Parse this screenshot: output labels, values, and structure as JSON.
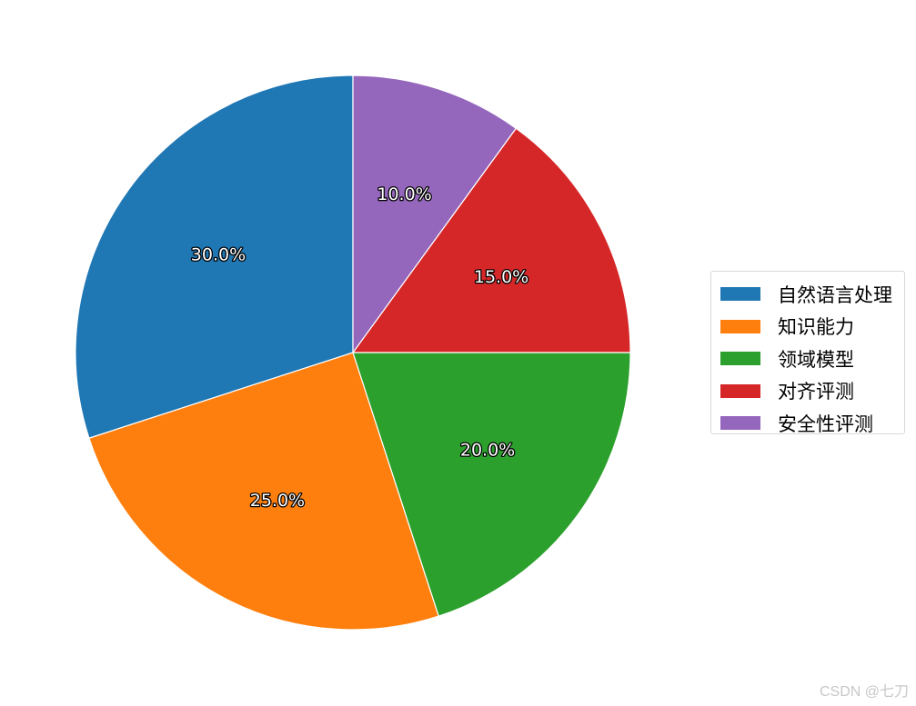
{
  "chart_data": {
    "type": "pie",
    "title": "",
    "categories": [
      "自然语言处理",
      "知识能力",
      "领域模型",
      "对齐评测",
      "安全性评测"
    ],
    "values": [
      30.0,
      25.0,
      20.0,
      15.0,
      10.0
    ],
    "labels": [
      "30.0%",
      "25.0%",
      "20.0%",
      "15.0%",
      "10.0%"
    ],
    "colors": [
      "#1f77b4",
      "#ff7f0e",
      "#2ca02c",
      "#d62728",
      "#9467bd"
    ],
    "start_angle_deg": 90,
    "direction": "counterclockwise",
    "legend": {
      "placement": "right"
    }
  },
  "legend_items": [
    {
      "label": "自然语言处理",
      "color": "#1f77b4"
    },
    {
      "label": "知识能力",
      "color": "#ff7f0e"
    },
    {
      "label": "领域模型",
      "color": "#2ca02c"
    },
    {
      "label": "对齐评测",
      "color": "#d62728"
    },
    {
      "label": "安全性评测",
      "color": "#9467bd"
    }
  ],
  "watermark": "CSDN @七刀"
}
